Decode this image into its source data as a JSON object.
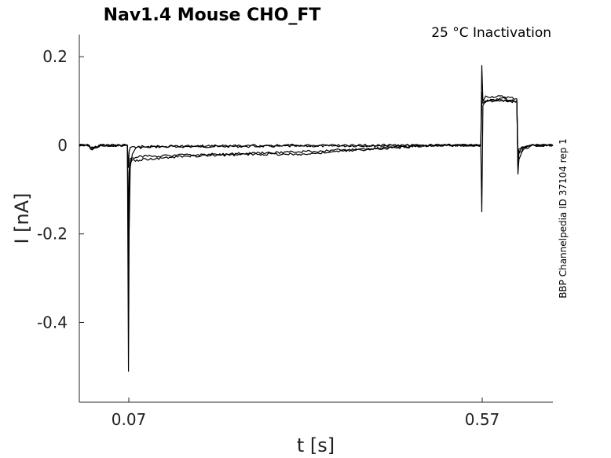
{
  "chart_data": {
    "type": "line",
    "title": "Nav1.4  Mouse  CHO_FT",
    "subtitle": "25 °C  Inactivation",
    "side_label": "BBP Channelpedia ID 37104 rep 1",
    "xlabel": "t [s]",
    "ylabel": "I [nA]",
    "xlim": [
      0.0,
      0.67
    ],
    "ylim": [
      -0.58,
      0.25
    ],
    "x_ticks": [
      0.07,
      0.57
    ],
    "x_tick_labels": [
      "0.07",
      "0.57"
    ],
    "y_ticks": [
      0.2,
      0,
      -0.2,
      -0.4
    ],
    "y_tick_labels": [
      "0.2",
      "0",
      "-0.2",
      "-0.4"
    ],
    "grid": false,
    "series": [
      {
        "x": [
          0.0,
          0.012,
          0.018,
          0.03,
          0.068,
          0.0695,
          0.0705,
          0.072,
          0.075,
          0.08,
          0.12,
          0.3,
          0.5,
          0.568,
          0.5695,
          0.571,
          0.575,
          0.6,
          0.619,
          0.6205,
          0.622,
          0.628,
          0.64,
          0.67
        ],
        "y": [
          0.0,
          0.0,
          -0.01,
          0.0,
          0.0,
          -0.51,
          -0.2,
          -0.05,
          -0.02,
          -0.005,
          -0.003,
          -0.002,
          0.0,
          0.0,
          0.18,
          0.1,
          0.11,
          0.11,
          0.105,
          -0.065,
          -0.03,
          -0.01,
          0.0,
          0.0
        ]
      },
      {
        "x": [
          0.0,
          0.012,
          0.018,
          0.03,
          0.068,
          0.0695,
          0.0705,
          0.072,
          0.075,
          0.09,
          0.15,
          0.25,
          0.32,
          0.4,
          0.5,
          0.568,
          0.5695,
          0.571,
          0.575,
          0.6,
          0.619,
          0.6205,
          0.622,
          0.628,
          0.64,
          0.67
        ],
        "y": [
          0.0,
          0.0,
          -0.008,
          0.0,
          0.0,
          -0.28,
          -0.1,
          -0.04,
          -0.035,
          -0.032,
          -0.025,
          -0.02,
          -0.02,
          -0.01,
          0.0,
          0.0,
          -0.15,
          0.09,
          0.1,
          0.105,
          0.1,
          -0.05,
          -0.02,
          -0.008,
          0.0,
          0.0
        ]
      },
      {
        "x": [
          0.0,
          0.012,
          0.018,
          0.03,
          0.068,
          0.0695,
          0.0705,
          0.072,
          0.075,
          0.09,
          0.15,
          0.25,
          0.31,
          0.4,
          0.5,
          0.568,
          0.5695,
          0.571,
          0.575,
          0.6,
          0.619,
          0.6205,
          0.622,
          0.628,
          0.64,
          0.67
        ],
        "y": [
          0.0,
          0.0,
          -0.006,
          0.0,
          0.0,
          -0.18,
          -0.06,
          -0.03,
          -0.028,
          -0.025,
          -0.022,
          -0.018,
          -0.015,
          -0.008,
          0.0,
          0.0,
          0.1,
          0.095,
          0.1,
          0.1,
          0.098,
          -0.04,
          -0.015,
          -0.005,
          0.0,
          0.0
        ]
      },
      {
        "x": [
          0.0,
          0.012,
          0.018,
          0.03,
          0.068,
          0.0695,
          0.0705,
          0.072,
          0.075,
          0.08,
          0.15,
          0.3,
          0.5,
          0.568,
          0.5695,
          0.571,
          0.575,
          0.6,
          0.619,
          0.6205,
          0.622,
          0.628,
          0.64,
          0.67
        ],
        "y": [
          0.0,
          0.0,
          -0.007,
          0.0,
          0.0,
          -0.05,
          -0.015,
          -0.005,
          -0.003,
          -0.003,
          -0.002,
          0.0,
          0.0,
          0.0,
          0.12,
          0.1,
          0.1,
          0.102,
          0.1,
          -0.03,
          -0.01,
          -0.004,
          0.0,
          0.0
        ]
      }
    ]
  }
}
